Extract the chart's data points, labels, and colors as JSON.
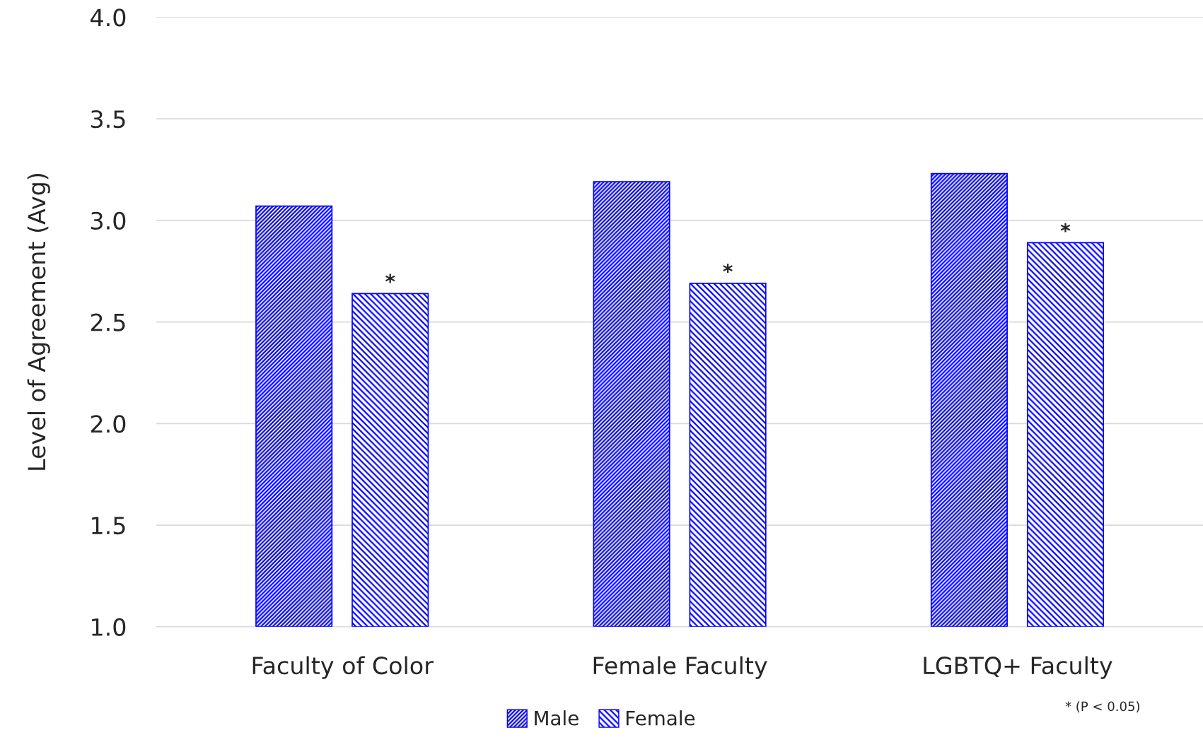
{
  "chart_data": {
    "type": "bar",
    "ylabel": "Level of Agreement (Avg)",
    "categories": [
      "Faculty of Color",
      "Female Faculty",
      "LGBTQ+ Faculty"
    ],
    "series": [
      {
        "name": "Male",
        "color": "#0000ff",
        "values": [
          3.07,
          3.19,
          3.23
        ]
      },
      {
        "name": "Female",
        "color": "#0000ff",
        "values": [
          2.64,
          2.69,
          2.89
        ]
      }
    ],
    "ylim": [
      1.0,
      4.0
    ],
    "yticks": [
      {
        "value": 1.0,
        "label": "1.0"
      },
      {
        "value": 1.5,
        "label": "1.5"
      },
      {
        "value": 2.0,
        "label": "2.0"
      },
      {
        "value": 2.5,
        "label": "2.5"
      },
      {
        "value": 3.0,
        "label": "3.0"
      },
      {
        "value": 3.5,
        "label": "3.5"
      },
      {
        "value": 4.0,
        "label": "4.0"
      }
    ],
    "grid": "y",
    "legend": "bottom",
    "annotations": [
      "*",
      "*",
      "*",
      "* (P < 0.05)"
    ]
  }
}
